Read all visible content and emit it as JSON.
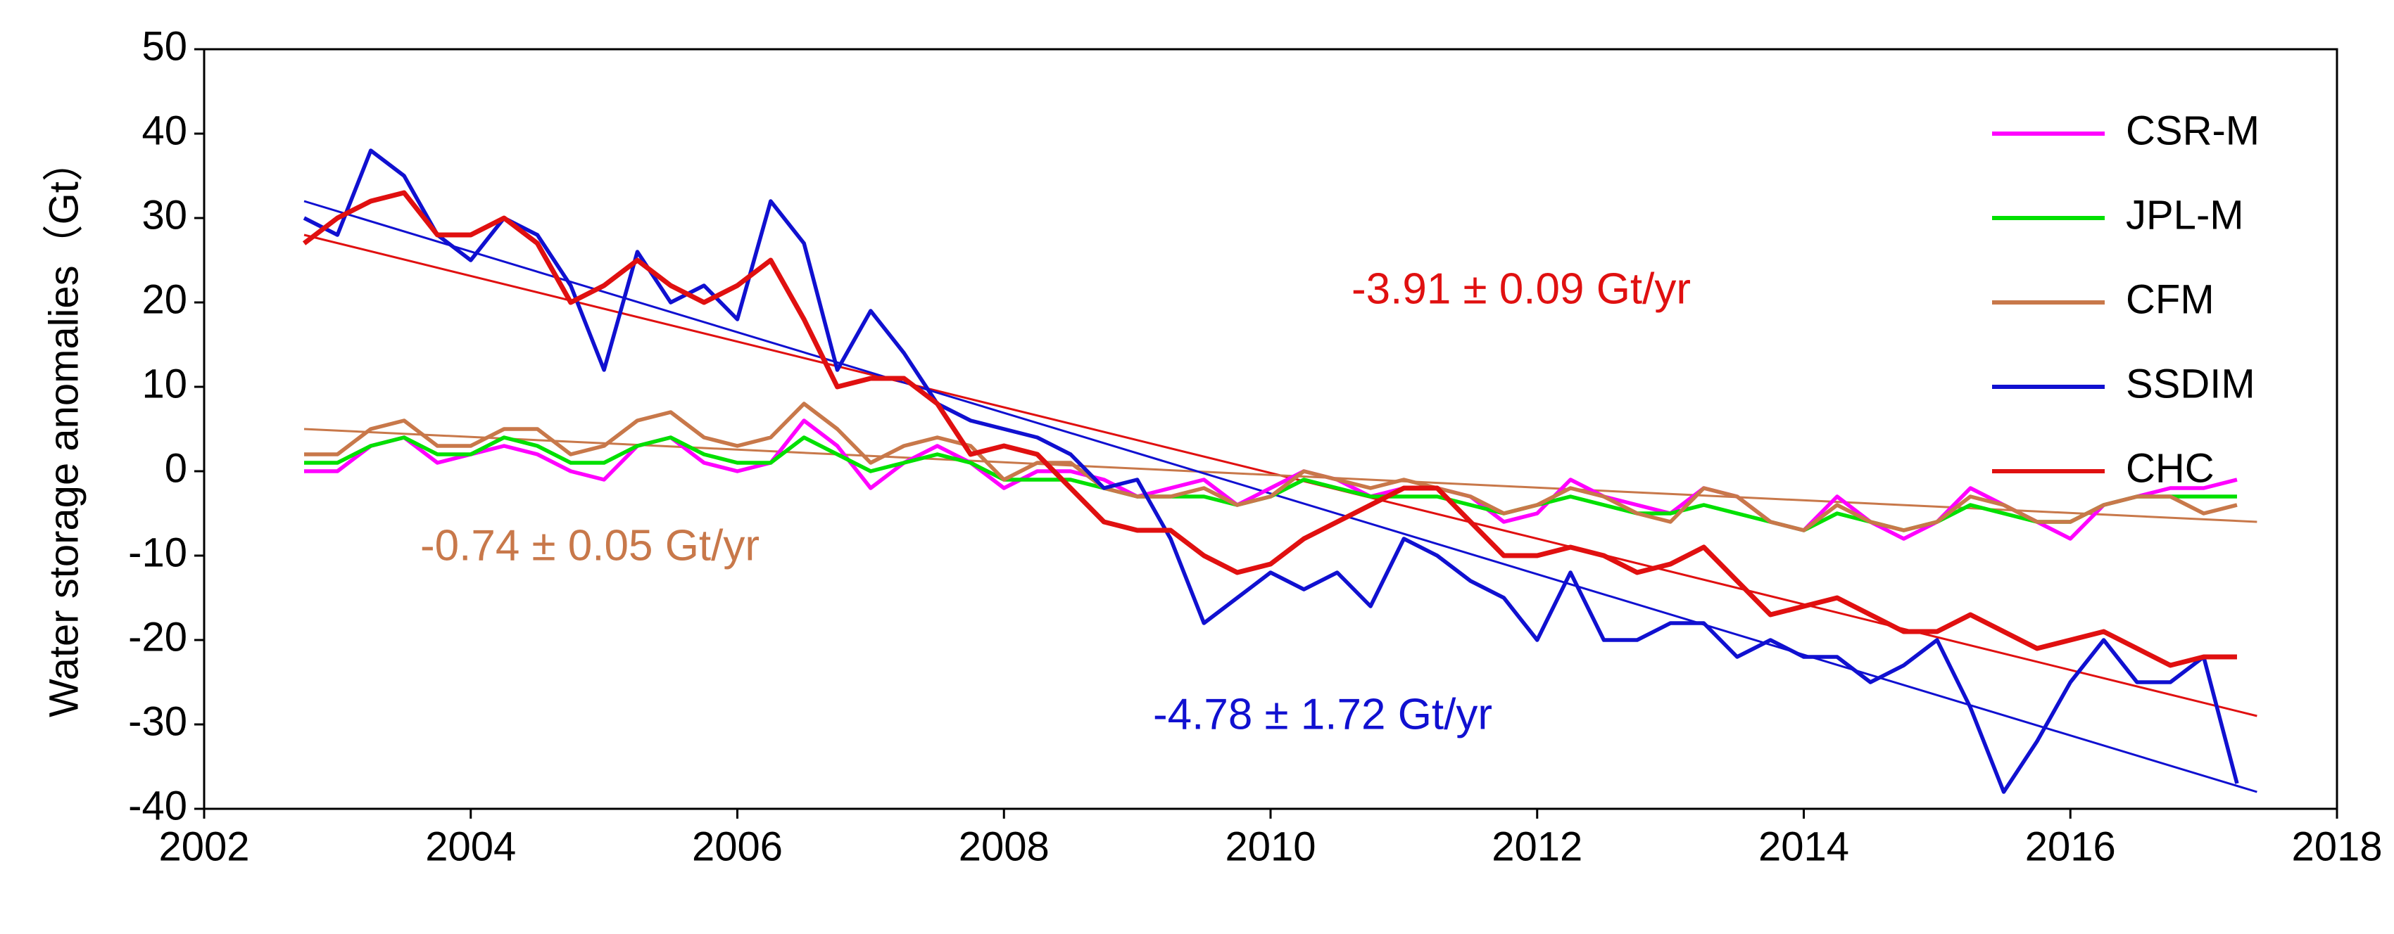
{
  "chart_data": {
    "type": "line",
    "y_label": "Water storage anomalies（Gt）",
    "xlim": [
      2002,
      2018
    ],
    "xticks": [
      2002,
      2004,
      2006,
      2008,
      2010,
      2012,
      2014,
      2016,
      2018
    ],
    "ylim": [
      -40,
      50
    ],
    "yticks": [
      -40,
      -30,
      -20,
      -10,
      0,
      10,
      20,
      30,
      40,
      50
    ],
    "x": [
      2002.75,
      2003,
      2003.25,
      2003.5,
      2003.75,
      2004,
      2004.25,
      2004.5,
      2004.75,
      2005,
      2005.25,
      2005.5,
      2005.75,
      2006,
      2006.25,
      2006.5,
      2006.75,
      2007,
      2007.25,
      2007.5,
      2007.75,
      2008,
      2008.25,
      2008.5,
      2008.75,
      2009,
      2009.25,
      2009.5,
      2009.75,
      2010,
      2010.25,
      2010.5,
      2010.75,
      2011,
      2011.25,
      2011.5,
      2011.75,
      2012,
      2012.25,
      2012.5,
      2012.75,
      2013,
      2013.25,
      2013.5,
      2013.75,
      2014,
      2014.25,
      2014.5,
      2014.75,
      2015,
      2015.25,
      2015.5,
      2015.75,
      2016,
      2016.25,
      2016.5,
      2016.75,
      2017,
      2017.25
    ],
    "series": [
      {
        "name": "CSR-M",
        "color": "#ff00ff",
        "values": [
          0,
          0,
          3,
          4,
          1,
          2,
          3,
          2,
          0,
          -1,
          3,
          4,
          1,
          0,
          1,
          6,
          3,
          -2,
          1,
          3,
          1,
          -2,
          0,
          0,
          -1,
          -3,
          -2,
          -1,
          -4,
          -2,
          0,
          -1,
          -3,
          -2,
          -2,
          -3,
          -6,
          -5,
          -1,
          -3,
          -4,
          -5,
          -2,
          -3,
          -6,
          -7,
          -3,
          -6,
          -8,
          -6,
          -2,
          -4,
          -6,
          -8,
          -4,
          -3,
          -2,
          -2,
          -1
        ]
      },
      {
        "name": "JPL-M",
        "color": "#00e000",
        "values": [
          1,
          1,
          3,
          4,
          2,
          2,
          4,
          3,
          1,
          1,
          3,
          4,
          2,
          1,
          1,
          4,
          2,
          0,
          1,
          2,
          1,
          -1,
          -1,
          -1,
          -2,
          -3,
          -3,
          -3,
          -4,
          -3,
          -1,
          -2,
          -3,
          -3,
          -3,
          -4,
          -5,
          -4,
          -3,
          -4,
          -5,
          -5,
          -4,
          -5,
          -6,
          -7,
          -5,
          -6,
          -7,
          -6,
          -4,
          -5,
          -6,
          -6,
          -4,
          -3,
          -3,
          -3,
          -3
        ]
      },
      {
        "name": "CFM",
        "color": "#c8784a",
        "values": [
          2,
          2,
          5,
          6,
          3,
          3,
          5,
          5,
          2,
          3,
          6,
          7,
          4,
          3,
          4,
          8,
          5,
          1,
          3,
          4,
          3,
          -1,
          1,
          1,
          -2,
          -3,
          -3,
          -2,
          -4,
          -3,
          0,
          -1,
          -2,
          -1,
          -2,
          -3,
          -5,
          -4,
          -2,
          -3,
          -5,
          -6,
          -2,
          -3,
          -6,
          -7,
          -4,
          -6,
          -7,
          -6,
          -3,
          -4,
          -6,
          -6,
          -4,
          -3,
          -3,
          -5,
          -4
        ]
      },
      {
        "name": "SSDIM",
        "color": "#1010d0",
        "values": [
          30,
          28,
          38,
          35,
          28,
          25,
          30,
          28,
          22,
          12,
          26,
          20,
          22,
          18,
          32,
          27,
          12,
          19,
          14,
          8,
          6,
          5,
          4,
          2,
          -2,
          -1,
          -8,
          -18,
          -15,
          -12,
          -14,
          -12,
          -16,
          -8,
          -10,
          -13,
          -15,
          -20,
          -12,
          -20,
          -20,
          -18,
          -18,
          -22,
          -20,
          -22,
          -22,
          -25,
          -23,
          -20,
          -28,
          -38,
          -32,
          -25,
          -20,
          -25,
          -25,
          -22,
          -37
        ]
      },
      {
        "name": "CHC",
        "color": "#e01010",
        "values": [
          27,
          30,
          32,
          33,
          28,
          28,
          30,
          27,
          20,
          22,
          25,
          22,
          20,
          22,
          25,
          18,
          10,
          11,
          11,
          8,
          2,
          3,
          2,
          -2,
          -6,
          -7,
          -7,
          -10,
          -12,
          -11,
          -8,
          -6,
          -4,
          -2,
          -2,
          -6,
          -10,
          -10,
          -9,
          -10,
          -12,
          -11,
          -9,
          -13,
          -17,
          -16,
          -15,
          -17,
          -19,
          -19,
          -17,
          -19,
          -21,
          -20,
          -19,
          -21,
          -23,
          -22,
          -22
        ]
      }
    ],
    "trends": [
      {
        "label": "-3.91 ± 0.09 Gt/yr",
        "color": "#e01010",
        "x": [
          2002.75,
          2017.4
        ],
        "values": [
          28,
          -29
        ]
      },
      {
        "label": "-0.74 ± 0.05 Gt/yr",
        "color": "#c8784a",
        "x": [
          2002.75,
          2017.4
        ],
        "values": [
          5,
          -6
        ]
      },
      {
        "label": "-4.78 ± 1.72 Gt/yr",
        "color": "#1010d0",
        "x": [
          2002.75,
          2017.4
        ],
        "values": [
          32,
          -38
        ]
      }
    ]
  }
}
